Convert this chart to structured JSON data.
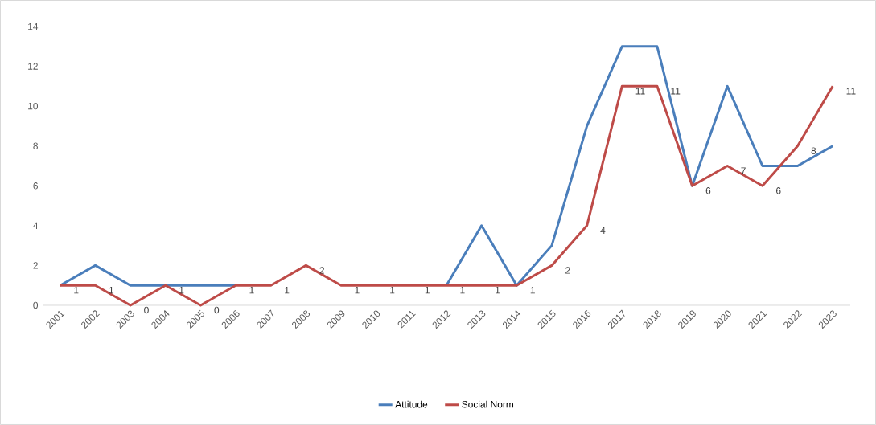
{
  "chart_data": {
    "type": "line",
    "categories": [
      "2001",
      "2002",
      "2003",
      "2004",
      "2005",
      "2006",
      "2007",
      "2008",
      "2009",
      "2010",
      "2011",
      "2012",
      "2013",
      "2014",
      "2015",
      "2016",
      "2017",
      "2018",
      "2019",
      "2020",
      "2021",
      "2022",
      "2023"
    ],
    "series": [
      {
        "name": "Attitude",
        "color": "#4a7ebb",
        "values": [
          1,
          2,
          1,
          1,
          1,
          1,
          null,
          null,
          null,
          null,
          null,
          1,
          4,
          1,
          3,
          9,
          13,
          13,
          6,
          11,
          7,
          7,
          8
        ]
      },
      {
        "name": "Social Norm",
        "color": "#be4b48",
        "values": [
          1,
          1,
          0,
          1,
          0,
          1,
          1,
          2,
          1,
          1,
          1,
          1,
          1,
          1,
          2,
          4,
          11,
          11,
          6,
          7,
          6,
          8,
          11
        ],
        "value_labels": [
          "1",
          "1",
          "0",
          "1",
          "0",
          "1",
          "1",
          "2",
          "1",
          "1",
          "1",
          "1",
          "1",
          "1",
          "2",
          "4",
          "11",
          "11",
          "6",
          "7",
          "6",
          "8",
          "11"
        ]
      }
    ],
    "ylim": [
      0,
      14
    ],
    "yticks": [
      0,
      2,
      4,
      6,
      8,
      10,
      12,
      14
    ],
    "legend": "bottom",
    "marker": "none",
    "line_style": "solid"
  }
}
